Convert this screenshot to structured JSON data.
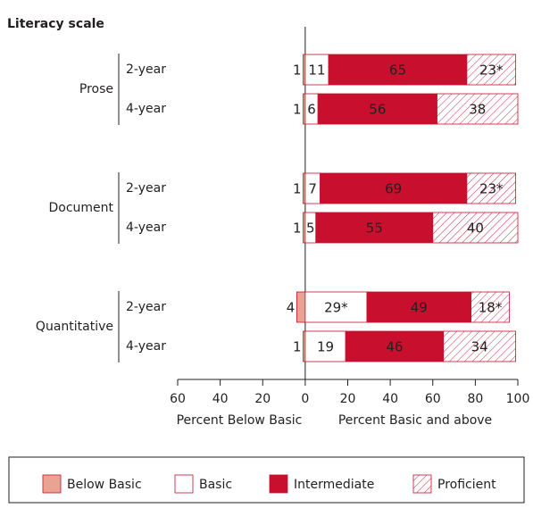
{
  "chart_data": {
    "type": "diverging-bar",
    "title": "Literacy scale",
    "groups": [
      "Prose",
      "Document",
      "Quantitative"
    ],
    "categories": [
      "2-year",
      "4-year",
      "2-year",
      "4-year",
      "2-year",
      "4-year"
    ],
    "series": [
      {
        "name": "Below Basic",
        "color": "#e8a393",
        "side": "left",
        "values": [
          1,
          1,
          1,
          1,
          4,
          1
        ]
      },
      {
        "name": "Basic",
        "color": "#ffffff",
        "values": [
          11,
          6,
          7,
          5,
          29,
          19
        ],
        "value_labels": [
          "11",
          "6",
          "7",
          "5",
          "29*",
          "19"
        ]
      },
      {
        "name": "Intermediate",
        "color": "#c8102e",
        "values": [
          65,
          56,
          69,
          55,
          49,
          46
        ]
      },
      {
        "name": "Proficient",
        "color": "hatch",
        "values": [
          23,
          38,
          23,
          40,
          18,
          34
        ],
        "value_labels": [
          "23*",
          "38",
          "23*",
          "40",
          "18*",
          "34"
        ]
      }
    ],
    "xlim": [
      -60,
      100
    ],
    "xticks": [
      {
        "value": -60,
        "label": "60"
      },
      {
        "value": -40,
        "label": "40"
      },
      {
        "value": -20,
        "label": "20"
      },
      0,
      20,
      40,
      60,
      80,
      100
    ],
    "xlabel_left": "Percent Below Basic",
    "xlabel_right": "Percent Basic and above"
  }
}
